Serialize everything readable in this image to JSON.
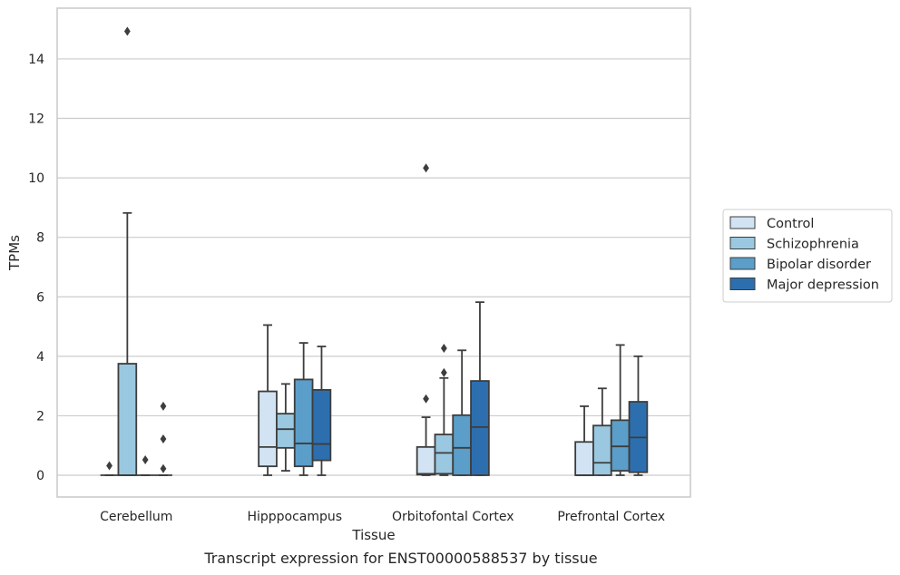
{
  "chart_data": {
    "type": "box",
    "caption": "Transcript expression for ENST00000588537 by tissue",
    "xlabel": "Tissue",
    "ylabel": "TPMs",
    "ylim": [
      -0.72,
      15.5
    ],
    "yticks": [
      0,
      2,
      4,
      6,
      8,
      10,
      12,
      14
    ],
    "grid": "horizontal",
    "legend_position": "right",
    "categories": [
      "Cerebellum",
      "Hipppocampus",
      "Orbitofontal Cortex",
      "Prefrontal Cortex"
    ],
    "series": [
      {
        "name": "Control",
        "color": "#d2e3f3",
        "boxes": [
          {
            "whislo": 0,
            "q1": 0,
            "med": 0,
            "q3": 0,
            "whishi": 0,
            "fliers": [
              0.32
            ]
          },
          {
            "whislo": 0,
            "q1": 0.3,
            "med": 0.95,
            "q3": 2.82,
            "whishi": 5.05,
            "fliers": []
          },
          {
            "whislo": 0,
            "q1": 0.02,
            "med": 0.05,
            "q3": 0.95,
            "whishi": 1.95,
            "fliers": [
              2.57,
              10.33
            ]
          },
          {
            "whislo": 0,
            "q1": 0,
            "med": 0,
            "q3": 1.12,
            "whishi": 2.32,
            "fliers": []
          }
        ]
      },
      {
        "name": "Schizophrenia",
        "color": "#9ac8e0",
        "boxes": [
          {
            "whislo": 0,
            "q1": 0,
            "med": 0,
            "q3": 3.75,
            "whishi": 8.82,
            "fliers": [
              14.93
            ]
          },
          {
            "whislo": 0.15,
            "q1": 0.92,
            "med": 1.55,
            "q3": 2.07,
            "whishi": 3.07,
            "fliers": []
          },
          {
            "whislo": 0,
            "q1": 0.05,
            "med": 0.75,
            "q3": 1.37,
            "whishi": 3.27,
            "fliers": [
              3.45,
              4.27
            ]
          },
          {
            "whislo": 0,
            "q1": 0,
            "med": 0.42,
            "q3": 1.67,
            "whishi": 2.92,
            "fliers": []
          }
        ]
      },
      {
        "name": "Bipolar disorder",
        "color": "#5a9ec9",
        "boxes": [
          {
            "whislo": 0,
            "q1": 0,
            "med": 0,
            "q3": 0,
            "whishi": 0,
            "fliers": [
              0.52
            ]
          },
          {
            "whislo": 0,
            "q1": 0.3,
            "med": 1.07,
            "q3": 3.22,
            "whishi": 4.45,
            "fliers": []
          },
          {
            "whislo": 0,
            "q1": 0,
            "med": 0.92,
            "q3": 2.02,
            "whishi": 4.2,
            "fliers": []
          },
          {
            "whislo": 0,
            "q1": 0.15,
            "med": 0.97,
            "q3": 1.85,
            "whishi": 4.38,
            "fliers": []
          }
        ]
      },
      {
        "name": "Major depression",
        "color": "#2d6fae",
        "boxes": [
          {
            "whislo": 0,
            "q1": 0,
            "med": 0,
            "q3": 0,
            "whishi": 0,
            "fliers": [
              0.22,
              1.22,
              2.32
            ]
          },
          {
            "whislo": 0,
            "q1": 0.5,
            "med": 1.05,
            "q3": 2.87,
            "whishi": 4.33,
            "fliers": []
          },
          {
            "whislo": 0,
            "q1": 0,
            "med": 1.62,
            "q3": 3.17,
            "whishi": 5.82,
            "fliers": []
          },
          {
            "whislo": 0,
            "q1": 0.1,
            "med": 1.27,
            "q3": 2.47,
            "whishi": 4,
            "fliers": []
          }
        ]
      }
    ]
  }
}
